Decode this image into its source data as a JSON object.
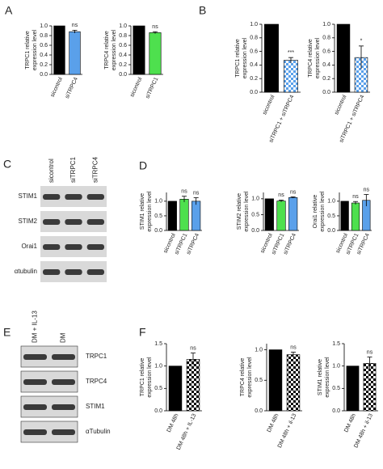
{
  "panels": [
    "A",
    "B",
    "C",
    "D",
    "E",
    "F"
  ],
  "blots": [
    {
      "columns": [
        "sicontrol",
        "siTRPC1",
        "siTRPC4"
      ],
      "rows": [
        "STIM1",
        "STIM2",
        "Orai1",
        "αtubulin"
      ]
    },
    {
      "columns": [
        "DM + IL-13",
        "DM"
      ],
      "rows": [
        "TRPC1",
        "TRPC4",
        "STIM1",
        "αTubulin"
      ]
    }
  ],
  "chart_data": [
    {
      "type": "bar",
      "ylabel": [
        "TRPC1 relative",
        "expression level"
      ],
      "categories": [
        "sicontrol",
        "siTRPC4"
      ],
      "values": [
        1.0,
        0.88
      ],
      "errors": [
        null,
        0.03
      ],
      "colors": [
        "#000000",
        "#5aa0ea"
      ],
      "checker": [
        false,
        false
      ],
      "annotations": [
        null,
        "ns"
      ],
      "ylim": [
        0,
        1.0
      ],
      "yticks": [
        {
          "value": 0,
          "label": "0.0"
        },
        0.2,
        0.4,
        0.6,
        0.8,
        {
          "value": 1,
          "label": "1.0"
        }
      ]
    },
    {
      "type": "bar",
      "ylabel": [
        "TRPC4 relative",
        "expression level"
      ],
      "categories": [
        "sicontrol",
        "siTRPC1"
      ],
      "values": [
        1.0,
        0.86
      ],
      "errors": [
        null,
        0.02
      ],
      "colors": [
        "#000000",
        "#4ee04e"
      ],
      "checker": [
        false,
        false
      ],
      "annotations": [
        null,
        "ns"
      ],
      "ylim": [
        0,
        1.0
      ],
      "yticks": [
        {
          "value": 0,
          "label": "0.0"
        },
        0.2,
        0.4,
        0.6,
        0.8,
        {
          "value": 1,
          "label": "1.0"
        }
      ]
    },
    {
      "type": "bar",
      "ylabel": [
        "TRPC1 relative",
        "expression level"
      ],
      "categories": [
        "sicontrol",
        "siTRPC1 + siTRPC4"
      ],
      "values": [
        1.0,
        0.47
      ],
      "errors": [
        null,
        0.04
      ],
      "colors": [
        "#000000",
        "#5aa0ea"
      ],
      "checker": [
        false,
        true
      ],
      "annotations": [
        null,
        "***"
      ],
      "ylim": [
        0,
        1.0
      ],
      "yticks": [
        {
          "value": 0,
          "label": "0.0"
        },
        0.2,
        0.4,
        0.6,
        0.8,
        {
          "value": 1,
          "label": "1.0"
        }
      ]
    },
    {
      "type": "bar",
      "ylabel": [
        "TRPC4 relative",
        "expression level"
      ],
      "categories": [
        "sicontrol",
        "siTRPC1 + siTRPC4"
      ],
      "values": [
        1.0,
        0.51
      ],
      "errors": [
        null,
        0.17
      ],
      "colors": [
        "#000000",
        "#5aa0ea"
      ],
      "checker": [
        false,
        true
      ],
      "annotations": [
        null,
        "*"
      ],
      "ylim": [
        0,
        1.0
      ],
      "yticks": [
        {
          "value": 0,
          "label": "0.0"
        },
        0.2,
        0.4,
        0.6,
        0.8,
        {
          "value": 1,
          "label": "1.0"
        }
      ]
    },
    {
      "type": "bar",
      "ylabel": [
        "STIM1 relative",
        "expression level"
      ],
      "categories": [
        "sicontrol",
        "siTRPC1",
        "siTRPC4"
      ],
      "values": [
        1.0,
        1.07,
        1.0
      ],
      "errors": [
        null,
        0.1,
        0.12
      ],
      "colors": [
        "#000000",
        "#4ee04e",
        "#5aa0ea"
      ],
      "checker": [
        false,
        false,
        false
      ],
      "annotations": [
        null,
        "ns",
        "ns"
      ],
      "ylim": [
        0,
        1.3
      ],
      "yticks": [
        {
          "value": 0,
          "label": "0.0"
        },
        0.5,
        {
          "value": 1,
          "label": "1.0"
        }
      ]
    },
    {
      "type": "bar",
      "ylabel": [
        "STIM2 relative",
        "expression level"
      ],
      "categories": [
        "sicontrol",
        "siTRPC1",
        "siTRPC4"
      ],
      "values": [
        1.0,
        0.93,
        1.04
      ],
      "errors": [
        null,
        0.03,
        0.02
      ],
      "colors": [
        "#000000",
        "#4ee04e",
        "#5aa0ea"
      ],
      "checker": [
        false,
        false,
        false
      ],
      "annotations": [
        null,
        "ns",
        "ns"
      ],
      "ylim": [
        0,
        1.2
      ],
      "yticks": [
        {
          "value": 0,
          "label": "0.0"
        },
        0.5,
        {
          "value": 1,
          "label": "1.0"
        }
      ]
    },
    {
      "type": "bar",
      "ylabel": [
        "Orai1 relative",
        "expression level"
      ],
      "categories": [
        "sicontrol",
        "siTRPC1",
        "siTRPC4"
      ],
      "values": [
        1.0,
        0.94,
        1.03
      ],
      "errors": [
        null,
        0.05,
        0.2
      ],
      "colors": [
        "#000000",
        "#4ee04e",
        "#5aa0ea"
      ],
      "checker": [
        false,
        false,
        false
      ],
      "annotations": [
        null,
        "ns",
        "ns"
      ],
      "ylim": [
        0,
        1.3
      ],
      "yticks": [
        {
          "value": 0,
          "label": "0.0"
        },
        0.5,
        {
          "value": 1,
          "label": "1.0"
        }
      ]
    },
    {
      "type": "bar",
      "ylabel": [
        "TRPC1 relative",
        "expression level"
      ],
      "categories": [
        "DM 48h",
        "DM 48h + IL-13"
      ],
      "values": [
        1.0,
        1.15
      ],
      "errors": [
        null,
        0.14
      ],
      "colors": [
        "#000000",
        "#000000"
      ],
      "checker": [
        false,
        true
      ],
      "annotations": [
        null,
        "ns"
      ],
      "ylim": [
        0,
        1.5
      ],
      "yticks": [
        {
          "value": 0,
          "label": "0.0"
        },
        0.5,
        {
          "value": 1,
          "label": "1.0"
        },
        1.5
      ]
    },
    {
      "type": "bar",
      "ylabel": [
        "TRPC4 relative",
        "expression level"
      ],
      "categories": [
        "DM 48h",
        "DM 48h + il-13"
      ],
      "values": [
        1.0,
        0.92
      ],
      "errors": [
        null,
        0.04
      ],
      "colors": [
        "#000000",
        "#000000"
      ],
      "checker": [
        false,
        true
      ],
      "annotations": [
        null,
        "ns"
      ],
      "ylim": [
        0,
        1.1
      ],
      "yticks": [
        {
          "value": 0,
          "label": "0.0"
        },
        0.5,
        {
          "value": 1,
          "label": "1.0"
        }
      ]
    },
    {
      "type": "bar",
      "ylabel": [
        "STIM1 relative",
        "expression level"
      ],
      "categories": [
        "DM 48h",
        "DM 48h + il-13"
      ],
      "values": [
        1.0,
        1.06
      ],
      "errors": [
        null,
        0.14
      ],
      "colors": [
        "#000000",
        "#000000"
      ],
      "checker": [
        false,
        true
      ],
      "annotations": [
        null,
        "ns"
      ],
      "ylim": [
        0,
        1.5
      ],
      "yticks": [
        {
          "value": 0,
          "label": "0.0"
        },
        0.5,
        {
          "value": 1,
          "label": "1.0"
        },
        1.5
      ]
    }
  ]
}
